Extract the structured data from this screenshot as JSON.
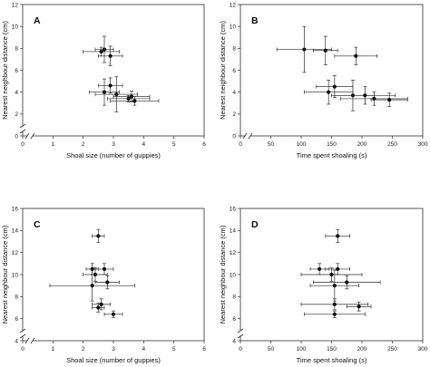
{
  "chart_data": [
    {
      "type": "scatter",
      "panel_label": "A",
      "xlabel": "Shoal size (number of guppies)",
      "ylabel": "Nearest neighbour distance (cm)",
      "xlim": [
        0,
        6
      ],
      "ylim": [
        0,
        12
      ],
      "xticks": [
        0,
        1,
        2,
        3,
        4,
        5,
        6
      ],
      "yticks": [
        0,
        2,
        4,
        6,
        8,
        10,
        12
      ],
      "axis_break": "both",
      "points": [
        {
          "x": 2.6,
          "y": 7.7,
          "xerr": 0.6,
          "yerr": 0.4
        },
        {
          "x": 2.7,
          "y": 7.9,
          "xerr": 0.3,
          "yerr": 1.2
        },
        {
          "x": 2.9,
          "y": 7.3,
          "xerr": 0.4,
          "yerr": 0.9
        },
        {
          "x": 2.9,
          "y": 4.6,
          "xerr": 0.4,
          "yerr": 0.7
        },
        {
          "x": 2.7,
          "y": 4.0,
          "xerr": 0.5,
          "yerr": 1.2
        },
        {
          "x": 3.1,
          "y": 3.8,
          "xerr": 0.7,
          "yerr": 1.6
        },
        {
          "x": 3.6,
          "y": 3.6,
          "xerr": 0.6,
          "yerr": 0.5
        },
        {
          "x": 3.5,
          "y": 3.4,
          "xerr": 0.7,
          "yerr": 0.3
        },
        {
          "x": 3.7,
          "y": 3.2,
          "xerr": 0.8,
          "yerr": 0.4
        }
      ]
    },
    {
      "type": "scatter",
      "panel_label": "B",
      "xlabel": "Time spent shoaling (s)",
      "ylabel": "Nearest neighbour distance (cm)",
      "xlim": [
        0,
        300
      ],
      "ylim": [
        0,
        12
      ],
      "xticks": [
        0,
        50,
        100,
        150,
        200,
        250,
        300
      ],
      "yticks": [
        0,
        2,
        4,
        6,
        8,
        10,
        12
      ],
      "axis_break": "x",
      "points": [
        {
          "x": 105,
          "y": 7.9,
          "xerr": 45,
          "yerr": 2.1
        },
        {
          "x": 140,
          "y": 7.8,
          "xerr": 20,
          "yerr": 1.3
        },
        {
          "x": 190,
          "y": 7.3,
          "xerr": 35,
          "yerr": 0.8
        },
        {
          "x": 155,
          "y": 4.5,
          "xerr": 30,
          "yerr": 1.0
        },
        {
          "x": 145,
          "y": 4.0,
          "xerr": 40,
          "yerr": 1.1
        },
        {
          "x": 185,
          "y": 3.7,
          "xerr": 35,
          "yerr": 1.4
        },
        {
          "x": 205,
          "y": 3.7,
          "xerr": 50,
          "yerr": 0.8
        },
        {
          "x": 220,
          "y": 3.4,
          "xerr": 55,
          "yerr": 0.6
        },
        {
          "x": 245,
          "y": 3.3,
          "xerr": 30,
          "yerr": 0.6
        }
      ]
    },
    {
      "type": "scatter",
      "panel_label": "C",
      "xlabel": "Shoal size (number of guppies)",
      "ylabel": "Nearest neighbour distance (cm)",
      "xlim": [
        0,
        6
      ],
      "ylim": [
        4,
        16
      ],
      "xticks": [
        0,
        1,
        2,
        3,
        4,
        5,
        6
      ],
      "yticks": [
        4,
        6,
        8,
        10,
        12,
        14,
        16
      ],
      "axis_break": "both",
      "points": [
        {
          "x": 2.5,
          "y": 13.5,
          "xerr": 0.2,
          "yerr": 0.6
        },
        {
          "x": 2.3,
          "y": 10.5,
          "xerr": 0.2,
          "yerr": 0.5
        },
        {
          "x": 2.7,
          "y": 10.5,
          "xerr": 0.3,
          "yerr": 0.5
        },
        {
          "x": 2.4,
          "y": 10.0,
          "xerr": 0.4,
          "yerr": 0.6
        },
        {
          "x": 2.8,
          "y": 9.3,
          "xerr": 0.4,
          "yerr": 0.6
        },
        {
          "x": 2.3,
          "y": 9.0,
          "xerr": 1.4,
          "yerr": 1.4
        },
        {
          "x": 2.6,
          "y": 7.3,
          "xerr": 0.3,
          "yerr": 0.5
        },
        {
          "x": 2.5,
          "y": 7.0,
          "xerr": 0.2,
          "yerr": 0.4
        },
        {
          "x": 3.0,
          "y": 6.4,
          "xerr": 0.3,
          "yerr": 0.3
        }
      ]
    },
    {
      "type": "scatter",
      "panel_label": "D",
      "xlabel": "Time spent shoaling (s)",
      "ylabel": "Nearest neighbour distance (cm)",
      "xlim": [
        0,
        300
      ],
      "ylim": [
        4,
        16
      ],
      "xticks": [
        0,
        50,
        100,
        150,
        200,
        250,
        300
      ],
      "yticks": [
        4,
        6,
        8,
        10,
        12,
        14,
        16
      ],
      "axis_break": "y",
      "points": [
        {
          "x": 160,
          "y": 13.5,
          "xerr": 20,
          "yerr": 0.6
        },
        {
          "x": 130,
          "y": 10.5,
          "xerr": 15,
          "yerr": 0.5
        },
        {
          "x": 160,
          "y": 10.5,
          "xerr": 20,
          "yerr": 0.5
        },
        {
          "x": 150,
          "y": 10.0,
          "xerr": 50,
          "yerr": 0.6
        },
        {
          "x": 175,
          "y": 9.3,
          "xerr": 55,
          "yerr": 0.6
        },
        {
          "x": 155,
          "y": 9.0,
          "xerr": 40,
          "yerr": 1.4
        },
        {
          "x": 195,
          "y": 7.1,
          "xerr": 20,
          "yerr": 0.4
        },
        {
          "x": 155,
          "y": 7.3,
          "xerr": 55,
          "yerr": 0.5
        },
        {
          "x": 155,
          "y": 6.4,
          "xerr": 50,
          "yerr": 0.3
        }
      ]
    }
  ]
}
